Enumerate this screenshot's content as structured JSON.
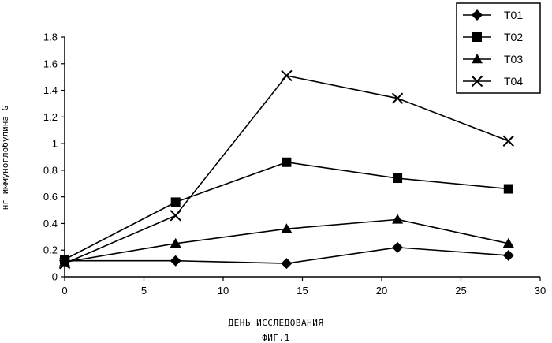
{
  "chart_data": {
    "type": "line",
    "title": "",
    "xlabel": "ДЕНЬ ИССЛЕДОВАНИЯ",
    "ylabel": "нг иммуноглобулина G",
    "caption": "ФИГ.1",
    "xlim": [
      0,
      30
    ],
    "ylim": [
      0,
      1.8
    ],
    "x_ticks": [
      0,
      5,
      10,
      15,
      20,
      25,
      30
    ],
    "y_ticks": [
      0,
      0.2,
      0.4,
      0.6,
      0.8,
      1,
      1.2,
      1.4,
      1.6,
      1.8
    ],
    "grid": false,
    "legend_position": "top-right",
    "series": [
      {
        "name": "T01",
        "marker": "diamond",
        "x": [
          0,
          7,
          14,
          21,
          28
        ],
        "y": [
          0.12,
          0.12,
          0.1,
          0.22,
          0.16
        ]
      },
      {
        "name": "T02",
        "marker": "square",
        "x": [
          0,
          7,
          14,
          21,
          28
        ],
        "y": [
          0.13,
          0.56,
          0.86,
          0.74,
          0.66
        ]
      },
      {
        "name": "T03",
        "marker": "triangle",
        "x": [
          0,
          7,
          14,
          21,
          28
        ],
        "y": [
          0.11,
          0.25,
          0.36,
          0.43,
          0.25
        ]
      },
      {
        "name": "T04",
        "marker": "cross",
        "x": [
          0,
          7,
          14,
          21,
          28
        ],
        "y": [
          0.1,
          0.46,
          1.51,
          1.34,
          1.02
        ]
      }
    ]
  }
}
